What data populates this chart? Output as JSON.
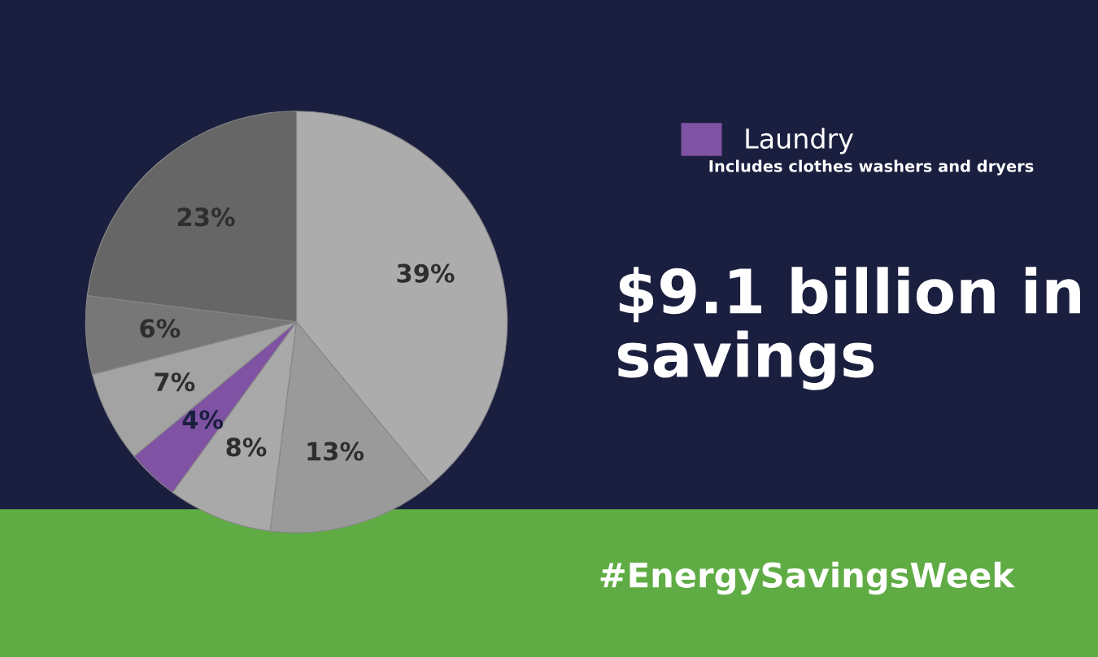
{
  "chart_data": {
    "type": "pie",
    "title": "$9.1 billion in savings",
    "categories": [
      null,
      null,
      null,
      "Laundry",
      null,
      null,
      null
    ],
    "values": [
      39,
      13,
      8,
      4,
      7,
      6,
      23
    ],
    "colors": [
      "#acacac",
      "#9a9a9a",
      "#a9a9a9",
      "#7f52a3",
      "#a3a3a3",
      "#777777",
      "#666666"
    ],
    "value_labels": [
      "39%",
      "13%",
      "8%",
      "4%",
      "7%",
      "6%",
      "23%"
    ],
    "legend": "top right",
    "annotations": [
      "Includes clothes washers and dryers",
      "#EnergySavingsWeek"
    ]
  }
}
